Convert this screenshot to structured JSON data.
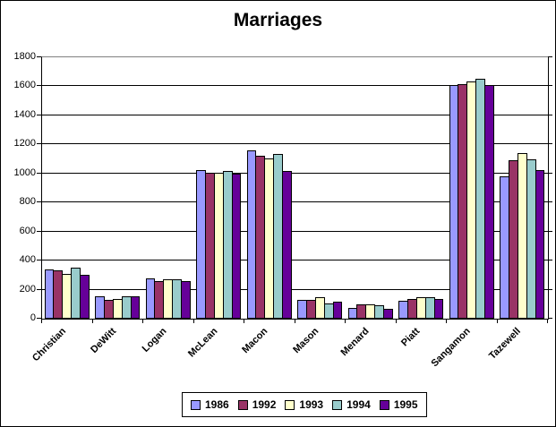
{
  "window": {
    "background_color": "#FFFFFF",
    "border_color": "#000000"
  },
  "chart_data": {
    "type": "bar",
    "title": "Marriages",
    "categories": [
      "Christian",
      "DeWitt",
      "Logan",
      "McLean",
      "Macon",
      "Mason",
      "Menard",
      "Piatt",
      "Sangamon",
      "Tazewell"
    ],
    "series": [
      {
        "name": "1986",
        "color": "#9999FF",
        "values": [
          335,
          150,
          270,
          1015,
          1150,
          125,
          70,
          120,
          1600,
          975
        ]
      },
      {
        "name": "1992",
        "color": "#993366",
        "values": [
          325,
          125,
          255,
          1000,
          1115,
          125,
          95,
          130,
          1610,
          1085
        ]
      },
      {
        "name": "1993",
        "color": "#FFFFCC",
        "values": [
          305,
          130,
          265,
          1000,
          1100,
          140,
          95,
          140,
          1630,
          1135
        ]
      },
      {
        "name": "1994",
        "color": "#99CCCC",
        "values": [
          345,
          145,
          265,
          1010,
          1125,
          100,
          85,
          140,
          1645,
          1090
        ]
      },
      {
        "name": "1995",
        "color": "#660099",
        "values": [
          295,
          150,
          255,
          995,
          1010,
          110,
          60,
          130,
          1600,
          1015
        ]
      }
    ],
    "xlabel": "",
    "ylabel": "",
    "ylim": [
      0,
      1800
    ],
    "ytick_step": 200,
    "yticks": [
      "0",
      "200",
      "400",
      "600",
      "800",
      "1000",
      "1200",
      "1400",
      "1600",
      "1800"
    ],
    "grid": true,
    "gridline_color": "#000000",
    "plot_border_top_color": "#808080",
    "legend_position": "bottom",
    "bar_border_color": "#000000"
  }
}
